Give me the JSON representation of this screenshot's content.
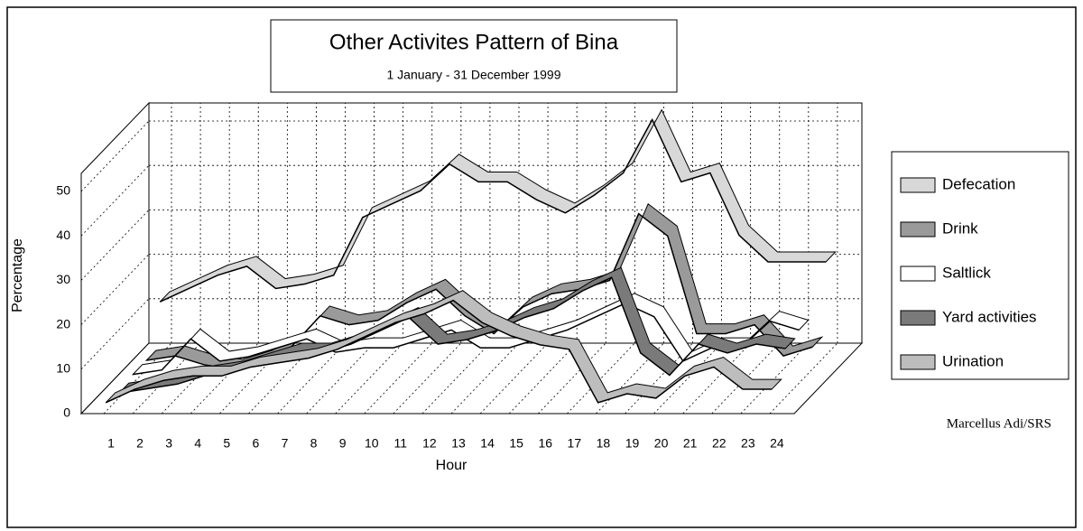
{
  "chart_data": {
    "type": "line3d",
    "title": "Other Activites Pattern of Bina",
    "subtitle": "1 January - 31 December 1999",
    "x_label": "Hour",
    "y_label": "Percentage",
    "credit": "Marcellus Adi/SRS",
    "categories": [
      1,
      2,
      3,
      4,
      5,
      6,
      7,
      8,
      9,
      10,
      11,
      12,
      13,
      14,
      15,
      16,
      17,
      18,
      19,
      20,
      21,
      22,
      23,
      24
    ],
    "ylim": [
      0,
      50
    ],
    "yticks": [
      0,
      10,
      20,
      30,
      40,
      50
    ],
    "grid": true,
    "legend": "right",
    "series": [
      {
        "name": "Defecation",
        "color": "#d8d8d8",
        "values": [
          12,
          15,
          18,
          20,
          15,
          16,
          18,
          31,
          34,
          37,
          43,
          39,
          39,
          35,
          32,
          36,
          41,
          53,
          39,
          41,
          27,
          21,
          21,
          21
        ]
      },
      {
        "name": "Drink",
        "color": "#9a9a9a",
        "values": [
          2,
          3,
          1,
          0,
          2,
          5,
          12,
          10,
          11,
          15,
          18,
          12,
          8,
          14,
          17,
          18,
          20,
          35,
          30,
          8,
          8,
          10,
          3,
          5
        ]
      },
      {
        "name": "Saltlick",
        "color": "#ffffff",
        "values": [
          2,
          3,
          10,
          5,
          6,
          8,
          10,
          7,
          8,
          8,
          10,
          12,
          8,
          8,
          10,
          12,
          15,
          18,
          15,
          5,
          8,
          8,
          14,
          12
        ]
      },
      {
        "name": "Yard activities",
        "color": "#7a7a7a",
        "values": [
          1,
          2,
          3,
          5,
          6,
          8,
          10,
          10,
          12,
          15,
          18,
          12,
          13,
          15,
          18,
          20,
          24,
          27,
          10,
          5,
          12,
          10,
          12,
          11
        ]
      },
      {
        "name": "Urination",
        "color": "#bdbdbd",
        "values": [
          2,
          5,
          7,
          8,
          8,
          10,
          11,
          12,
          14,
          17,
          20,
          22,
          25,
          20,
          17,
          15,
          14,
          2,
          4,
          3,
          8,
          10,
          5,
          5
        ]
      }
    ]
  }
}
